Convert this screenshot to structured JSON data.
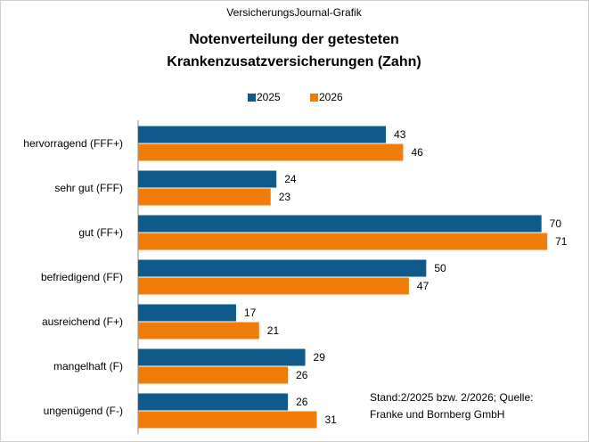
{
  "chart_data": {
    "type": "bar",
    "orientation": "horizontal",
    "source": "VersicherungsJournal-Grafik",
    "title": [
      "Notenverteilung der getesteten",
      "Krankenzusatzversicherungen  (Zahn)"
    ],
    "categories": [
      "hervorragend (FFF+)",
      "sehr gut (FFF)",
      "gut (FF+)",
      "befriedigend (FF)",
      "ausreichend (F+)",
      "mangelhaft (F)",
      "ungenügend (F-)"
    ],
    "series": [
      {
        "name": "2025",
        "color": "#0e5a8a",
        "values": [
          43,
          24,
          70,
          50,
          17,
          29,
          26
        ]
      },
      {
        "name": "2026",
        "color": "#f07d0a",
        "values": [
          46,
          23,
          71,
          47,
          21,
          26,
          31
        ]
      }
    ],
    "xlim": [
      0,
      75
    ],
    "note": [
      "Stand:2/2025  bzw. 2/2026; Quelle:",
      "Franke und Bornberg  GmbH"
    ]
  }
}
